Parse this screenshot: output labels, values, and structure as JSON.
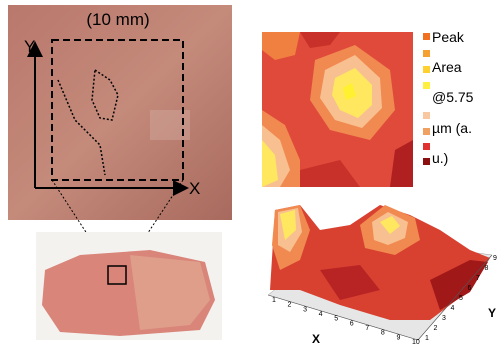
{
  "photo": {
    "scale_label": "(10 mm)",
    "axis_y": "Y",
    "axis_x": "X"
  },
  "legend": {
    "lines": [
      "Peak",
      "Area",
      "@5.75",
      "µm (a.",
      "u.)"
    ]
  },
  "surface": {
    "x_ticks": [
      "1",
      "2",
      "3",
      "4",
      "5",
      "6",
      "7",
      "8",
      "9",
      "10"
    ],
    "y_ticks": [
      "1",
      "2",
      "3",
      "4",
      "5",
      "6",
      "7",
      "8",
      "9"
    ],
    "x_label": "X",
    "y_label": "Y"
  }
}
